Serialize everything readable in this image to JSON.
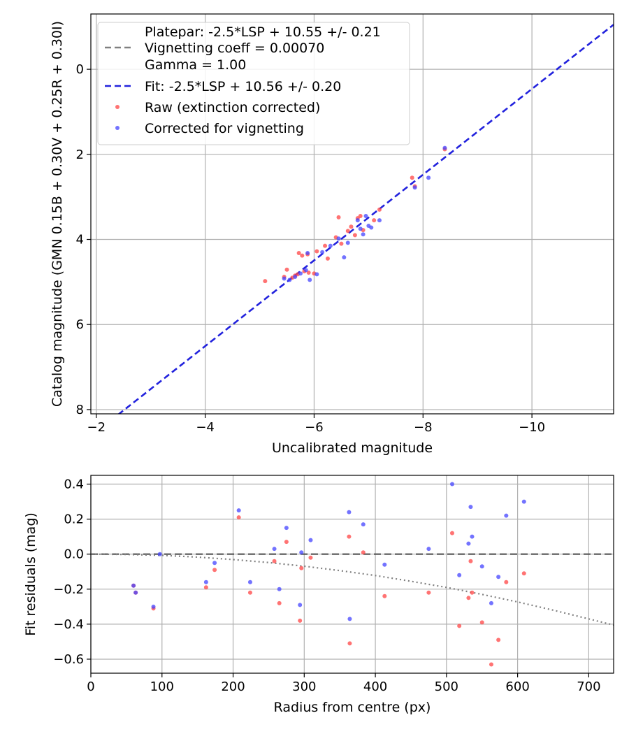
{
  "chart_data": [
    {
      "type": "scatter",
      "xlabel": "Uncalibrated magnitude",
      "ylabel": "Catalog magnitude (GMN 0.15B + 0.30V + 0.25R + 0.30I)",
      "xlim": [
        -1.9,
        -11.5
      ],
      "ylim": [
        8.1,
        -1.3
      ],
      "x_ticks": [
        -2,
        -4,
        -6,
        -8,
        -10
      ],
      "x_tick_labels": [
        "−2",
        "−4",
        "−6",
        "−8",
        "−10"
      ],
      "y_ticks": [
        0,
        2,
        4,
        6,
        8
      ],
      "y_tick_labels": [
        "0",
        "2",
        "4",
        "6",
        "8"
      ],
      "grid": true,
      "legend": {
        "position": "top-left",
        "entries": [
          {
            "label": "Platepar: -2.5*LSP + 10.55 +/- 0.21",
            "style": "none"
          },
          {
            "label": "Vignetting coeff = 0.00070",
            "style": "dashed",
            "color": "#808080"
          },
          {
            "label": "Gamma = 1.00",
            "style": "none"
          },
          {
            "label": "Fit: -2.5*LSP + 10.56 +/- 0.20",
            "style": "dashed",
            "color": "#2222dd"
          },
          {
            "label": "Raw (extinction corrected)",
            "style": "dot",
            "color": "#ff4444"
          },
          {
            "label": "Corrected for vignetting",
            "style": "dot",
            "color": "#4444ff"
          }
        ]
      },
      "fit_line": {
        "x": [
          -2.4,
          -11.5
        ],
        "y": [
          8.12,
          -1.05
        ],
        "color": "#2222dd"
      },
      "series": [
        {
          "name": "Raw (extinction corrected)",
          "color": "#ff4444",
          "points": [
            [
              -5.1,
              4.98
            ],
            [
              -5.45,
              4.88
            ],
            [
              -5.5,
              4.71
            ],
            [
              -5.6,
              4.9
            ],
            [
              -5.65,
              4.85
            ],
            [
              -5.7,
              4.82
            ],
            [
              -5.72,
              4.32
            ],
            [
              -5.78,
              4.38
            ],
            [
              -5.82,
              4.75
            ],
            [
              -5.88,
              4.35
            ],
            [
              -5.9,
              4.78
            ],
            [
              -6.0,
              4.8
            ],
            [
              -6.05,
              4.28
            ],
            [
              -6.2,
              4.15
            ],
            [
              -6.25,
              4.45
            ],
            [
              -6.4,
              3.95
            ],
            [
              -6.45,
              3.48
            ],
            [
              -6.5,
              4.1
            ],
            [
              -6.62,
              3.8
            ],
            [
              -6.68,
              3.7
            ],
            [
              -6.75,
              3.9
            ],
            [
              -6.8,
              3.5
            ],
            [
              -6.85,
              3.45
            ],
            [
              -6.9,
              3.78
            ],
            [
              -7.1,
              3.55
            ],
            [
              -7.2,
              3.3
            ],
            [
              -7.8,
              2.55
            ],
            [
              -7.85,
              2.75
            ],
            [
              -8.4,
              1.88
            ]
          ]
        },
        {
          "name": "Corrected for vignetting",
          "color": "#4444ff",
          "points": [
            [
              -5.45,
              4.92
            ],
            [
              -5.55,
              4.95
            ],
            [
              -5.65,
              4.88
            ],
            [
              -5.75,
              4.8
            ],
            [
              -5.85,
              4.72
            ],
            [
              -5.88,
              4.32
            ],
            [
              -5.92,
              4.95
            ],
            [
              -6.05,
              4.82
            ],
            [
              -6.15,
              4.3
            ],
            [
              -6.3,
              4.15
            ],
            [
              -6.45,
              3.98
            ],
            [
              -6.55,
              4.42
            ],
            [
              -6.62,
              4.08
            ],
            [
              -6.8,
              3.55
            ],
            [
              -6.85,
              3.75
            ],
            [
              -6.9,
              3.88
            ],
            [
              -6.95,
              3.45
            ],
            [
              -7.0,
              3.68
            ],
            [
              -7.05,
              3.72
            ],
            [
              -7.2,
              3.55
            ],
            [
              -7.85,
              2.78
            ],
            [
              -8.1,
              2.55
            ],
            [
              -8.4,
              1.85
            ]
          ]
        }
      ]
    },
    {
      "type": "scatter",
      "xlabel": "Radius from centre (px)",
      "ylabel": "Fit residuals (mag)",
      "xlim": [
        0,
        735
      ],
      "ylim": [
        -0.68,
        0.45
      ],
      "x_ticks": [
        0,
        100,
        200,
        300,
        400,
        500,
        600,
        700
      ],
      "x_tick_labels": [
        "0",
        "100",
        "200",
        "300",
        "400",
        "500",
        "600",
        "700"
      ],
      "y_ticks": [
        0.4,
        0.2,
        0.0,
        -0.2,
        -0.4,
        -0.6
      ],
      "y_tick_labels": [
        "0.4",
        "0.2",
        "0.0",
        "−0.2",
        "−0.4",
        "−0.6"
      ],
      "grid": true,
      "zero_line": {
        "y": 0,
        "color": "#555555",
        "style": "dashed"
      },
      "vignetting_curve": {
        "x": [
          0,
          50,
          100,
          150,
          200,
          250,
          300,
          350,
          400,
          450,
          500,
          550,
          600,
          650,
          700,
          735
        ],
        "y": [
          0,
          -0.002,
          -0.007,
          -0.017,
          -0.031,
          -0.048,
          -0.069,
          -0.094,
          -0.122,
          -0.155,
          -0.19,
          -0.23,
          -0.273,
          -0.32,
          -0.37,
          -0.405
        ],
        "color": "#808080",
        "style": "dotted"
      },
      "series": [
        {
          "name": "Raw (extinction corrected)",
          "color": "#ff4444",
          "points": [
            [
              60,
              -0.18
            ],
            [
              63,
              -0.22
            ],
            [
              88,
              -0.31
            ],
            [
              162,
              -0.19
            ],
            [
              174,
              -0.09
            ],
            [
              208,
              0.21
            ],
            [
              224,
              -0.22
            ],
            [
              258,
              -0.04
            ],
            [
              265,
              -0.28
            ],
            [
              275,
              0.07
            ],
            [
              294,
              -0.38
            ],
            [
              296,
              -0.08
            ],
            [
              309,
              -0.02
            ],
            [
              363,
              0.1
            ],
            [
              364,
              -0.51
            ],
            [
              383,
              0.01
            ],
            [
              413,
              -0.24
            ],
            [
              475,
              -0.22
            ],
            [
              508,
              0.12
            ],
            [
              518,
              -0.41
            ],
            [
              531,
              -0.25
            ],
            [
              534,
              -0.04
            ],
            [
              536,
              -0.22
            ],
            [
              550,
              -0.39
            ],
            [
              563,
              -0.63
            ],
            [
              573,
              -0.49
            ],
            [
              584,
              -0.16
            ],
            [
              609,
              -0.11
            ]
          ]
        },
        {
          "name": "Corrected for vignetting",
          "color": "#4444ff",
          "points": [
            [
              60,
              -0.18
            ],
            [
              63,
              -0.22
            ],
            [
              88,
              -0.3
            ],
            [
              97,
              0.0
            ],
            [
              162,
              -0.16
            ],
            [
              174,
              -0.05
            ],
            [
              208,
              0.25
            ],
            [
              224,
              -0.16
            ],
            [
              258,
              0.03
            ],
            [
              265,
              -0.2
            ],
            [
              275,
              0.15
            ],
            [
              294,
              -0.29
            ],
            [
              296,
              0.01
            ],
            [
              309,
              0.08
            ],
            [
              363,
              0.24
            ],
            [
              364,
              -0.37
            ],
            [
              383,
              0.17
            ],
            [
              413,
              -0.06
            ],
            [
              475,
              0.03
            ],
            [
              508,
              0.4
            ],
            [
              518,
              -0.12
            ],
            [
              531,
              0.06
            ],
            [
              534,
              0.27
            ],
            [
              536,
              0.1
            ],
            [
              550,
              -0.07
            ],
            [
              563,
              -0.28
            ],
            [
              573,
              -0.13
            ],
            [
              584,
              0.22
            ],
            [
              609,
              0.3
            ]
          ]
        }
      ]
    }
  ]
}
